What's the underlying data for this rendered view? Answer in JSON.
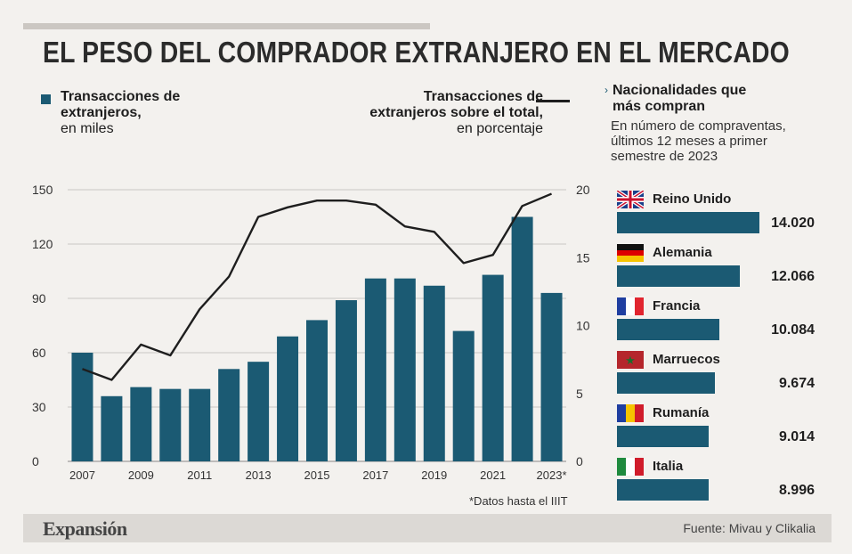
{
  "title": "EL PESO DEL COMPRADOR EXTRANJERO EN EL MERCADO",
  "legend": {
    "bars_bold_1": "Transacciones de",
    "bars_bold_2": "extranjeros,",
    "bars_sub": "en miles",
    "line_bold_1": "Transacciones de",
    "line_bold_2": "extranjeros sobre el total,",
    "line_sub": "en porcentaje"
  },
  "nationalities": {
    "title_1": "Nacionalidades que",
    "title_2": "más compran",
    "subtitle_1": "En número de compraventas,",
    "subtitle_2": "últimos 12 meses a primer",
    "subtitle_3": "semestre de 2023",
    "countries": [
      {
        "name": "Reino Unido",
        "value": "14.020",
        "num": 14020,
        "flag": "uk-flag"
      },
      {
        "name": "Alemania",
        "value": "12.066",
        "num": 12066,
        "flag": "germany-flag"
      },
      {
        "name": "Francia",
        "value": "10.084",
        "num": 10084,
        "flag": "france-flag"
      },
      {
        "name": "Marruecos",
        "value": "9.674",
        "num": 9674,
        "flag": "morocco-flag"
      },
      {
        "name": "Rumanía",
        "value": "9.014",
        "num": 9014,
        "flag": "romania-flag"
      },
      {
        "name": "Italia",
        "value": "8.996",
        "num": 8996,
        "flag": "italy-flag"
      }
    ]
  },
  "note": "*Datos hasta el IIIT",
  "footer": {
    "brand": "Expansión",
    "source": "Fuente: Mivau y Clikalia"
  },
  "colors": {
    "bar": "#1b5a73",
    "line": "#1e1e1e",
    "background": "#f3f1ee",
    "grid": "#c9c7c4"
  },
  "chart_data": [
    {
      "type": "bar+line",
      "categories": [
        "2007",
        "2008",
        "2009",
        "2010",
        "2011",
        "2012",
        "2013",
        "2014",
        "2015",
        "2016",
        "2017",
        "2018",
        "2019",
        "2020",
        "2021",
        "2022",
        "2023*"
      ],
      "x_tick_labels": [
        "2007",
        "2009",
        "2011",
        "2013",
        "2015",
        "2017",
        "2019",
        "2021",
        "2023*"
      ],
      "series": [
        {
          "name": "Transacciones de extranjeros, en miles",
          "kind": "bar",
          "axis": "left",
          "values": [
            60,
            36,
            41,
            40,
            40,
            51,
            55,
            69,
            78,
            89,
            101,
            101,
            97,
            72,
            103,
            135,
            93
          ]
        },
        {
          "name": "Transacciones de extranjeros sobre el total, en porcentaje",
          "kind": "line",
          "axis": "right",
          "values": [
            6.8,
            6.0,
            8.6,
            7.8,
            11.2,
            13.6,
            18.0,
            18.7,
            19.2,
            19.2,
            18.9,
            17.3,
            16.9,
            14.6,
            15.2,
            18.8,
            19.7
          ]
        }
      ],
      "y_left": {
        "ticks": [
          0,
          30,
          60,
          90,
          120,
          150
        ],
        "range": [
          0,
          150
        ]
      },
      "y_right": {
        "ticks": [
          0,
          5,
          10,
          15,
          20
        ],
        "range": [
          0,
          20
        ]
      },
      "grid": true
    },
    {
      "type": "bar",
      "orientation": "horizontal",
      "title": "Nacionalidades que más compran",
      "categories": [
        "Reino Unido",
        "Alemania",
        "Francia",
        "Marruecos",
        "Rumanía",
        "Italia"
      ],
      "values": [
        14020,
        12066,
        10084,
        9674,
        9014,
        8996
      ]
    }
  ]
}
